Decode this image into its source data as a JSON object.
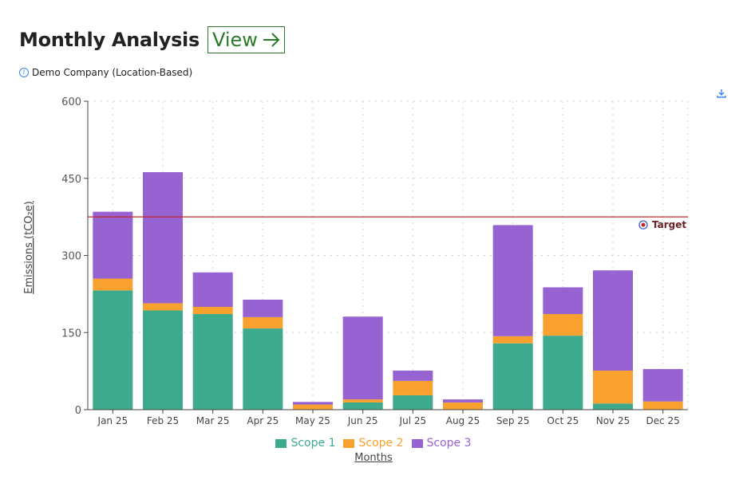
{
  "header": {
    "title": "Monthly Analysis",
    "view_label": "View",
    "subtitle": "Demo Company (Location-Based)"
  },
  "icons": {
    "info": "info-icon",
    "download": "download-icon",
    "arrow": "arrow-right-icon",
    "target": "target-icon"
  },
  "chart_data": {
    "type": "bar",
    "stacked": true,
    "categories": [
      "Jan 25",
      "Feb 25",
      "Mar 25",
      "Apr 25",
      "May 25",
      "Jun 25",
      "Jul 25",
      "Aug 25",
      "Sep 25",
      "Oct 25",
      "Nov 25",
      "Dec 25"
    ],
    "series": [
      {
        "name": "Scope 1",
        "color": "#3daa8e",
        "values": [
          232,
          193,
          186,
          158,
          0,
          14,
          28,
          0,
          129,
          144,
          12,
          0
        ]
      },
      {
        "name": "Scope 2",
        "color": "#f9a12e",
        "values": [
          23,
          14,
          14,
          22,
          10,
          6,
          28,
          14,
          14,
          42,
          64,
          16
        ]
      },
      {
        "name": "Scope 3",
        "color": "#9763d2",
        "values": [
          130,
          255,
          67,
          34,
          5,
          161,
          20,
          6,
          216,
          52,
          195,
          63
        ]
      }
    ],
    "ylim": [
      0,
      600
    ],
    "yticks": [
      0,
      150,
      300,
      450,
      600
    ],
    "ylabel": "Emissions (tCO₂e)",
    "xlabel": "Months",
    "target": {
      "label": "Target",
      "value": 375,
      "color": "#c0282d"
    },
    "grid": true,
    "legend_position": "bottom"
  }
}
